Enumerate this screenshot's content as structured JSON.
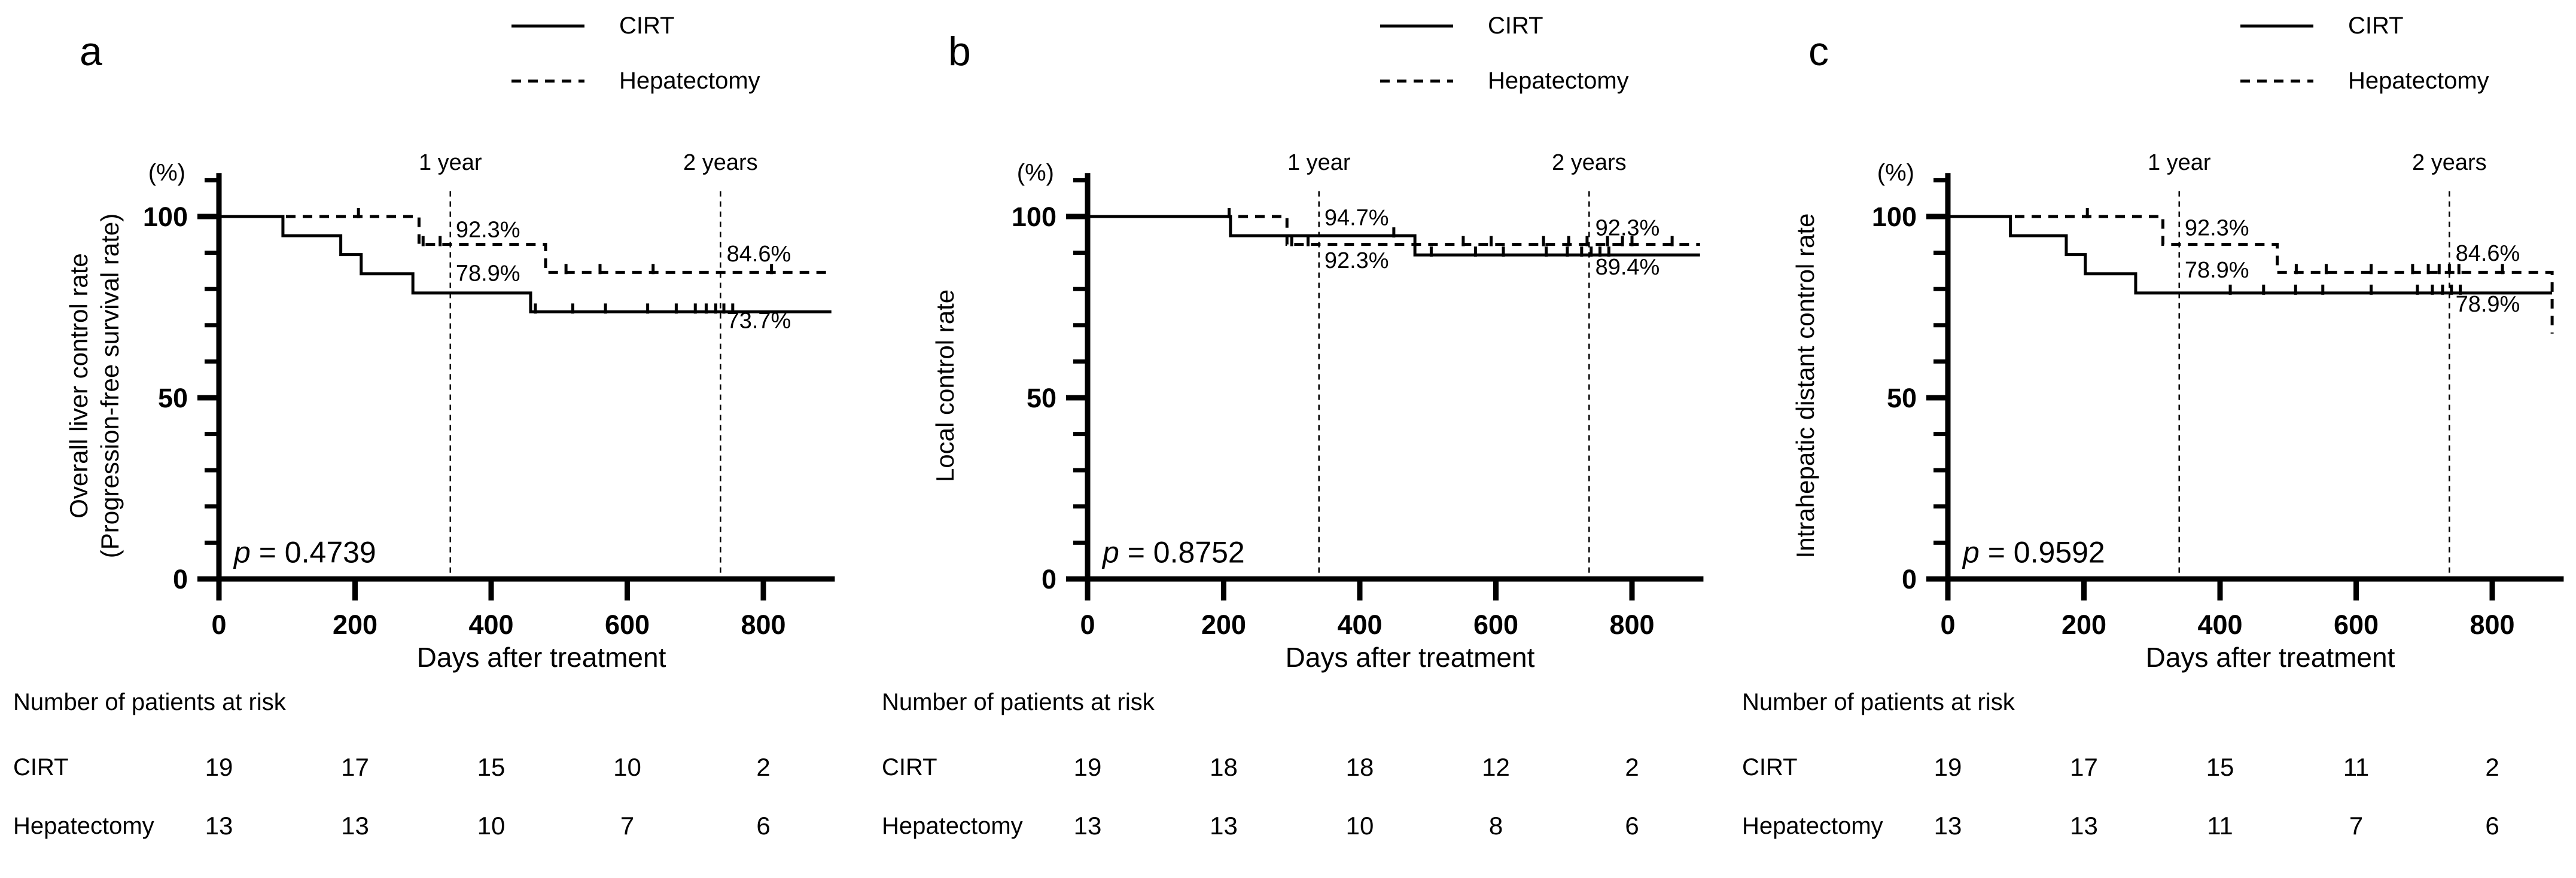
{
  "figure": {
    "background": "#ffffff",
    "text_color": "#000000",
    "x_axis_label": "Days after treatment",
    "y_unit_label": "(%)",
    "risk_table_title": "Number of patients at risk",
    "legend": {
      "items": [
        {
          "label": "CIRT",
          "line_style": "solid"
        },
        {
          "label": "Hepatectomy",
          "line_style": "dashed"
        }
      ]
    }
  },
  "chart_data": [
    {
      "panel_label": "a",
      "type": "line",
      "subtype": "kaplan-meier-step",
      "ylabel_lines": [
        "Overall liver control rate",
        "(Progression-free survival rate)"
      ],
      "xlabel": "Days after treatment",
      "y_unit": "(%)",
      "xlim": [
        0,
        905
      ],
      "ylim": [
        0,
        112
      ],
      "x_ticks": [
        0,
        200,
        400,
        600,
        800
      ],
      "y_major_ticks": [
        0,
        50,
        100
      ],
      "y_minor_ticks": [
        10,
        20,
        30,
        40,
        60,
        70,
        80,
        90,
        110
      ],
      "grid": false,
      "legend_position": "top-right",
      "time_markers": [
        {
          "label": "1 year",
          "x_days": 340
        },
        {
          "label": "2 years",
          "x_days": 737
        }
      ],
      "p_text": {
        "symbol": "p",
        "rest": " = 0.4739"
      },
      "series": [
        {
          "name": "CIRT",
          "style": "solid",
          "steps": [
            [
              0,
              100
            ],
            [
              94,
              94.7
            ],
            [
              179,
              89.5
            ],
            [
              209,
              84.2
            ],
            [
              285,
              78.9
            ],
            [
              458,
              73.7
            ]
          ],
          "end_x": 900,
          "censors": [
            [
              465,
              73.7
            ],
            [
              520,
              73.7
            ],
            [
              568,
              73.7
            ],
            [
              630,
              73.7
            ],
            [
              672,
              73.7
            ],
            [
              700,
              73.7
            ],
            [
              716,
              73.7
            ],
            [
              730,
              73.7
            ],
            [
              742,
              73.7
            ],
            [
              755,
              73.7
            ]
          ]
        },
        {
          "name": "Hepatectomy",
          "style": "dashed",
          "steps": [
            [
              0,
              100
            ],
            [
              294,
              92.3
            ],
            [
              480,
              84.6
            ]
          ],
          "end_x": 900,
          "censors": [
            [
              205,
              100
            ],
            [
              300,
              92.3
            ],
            [
              325,
              92.3
            ],
            [
              510,
              84.6
            ],
            [
              560,
              84.6
            ],
            [
              638,
              84.6
            ],
            [
              812,
              84.6
            ]
          ]
        }
      ],
      "annotations": [
        {
          "text": "92.3%",
          "x_days": 348,
          "y_pct": 94.3
        },
        {
          "text": "78.9%",
          "x_days": 348,
          "y_pct": 82.3
        },
        {
          "text": "84.6%",
          "x_days": 746,
          "y_pct": 87.6
        },
        {
          "text": "73.7%",
          "x_days": 746,
          "y_pct": 69.2
        }
      ],
      "risk_table": {
        "rows": [
          {
            "label": "CIRT",
            "values": [
              "19",
              "17",
              "15",
              "10",
              "2"
            ]
          },
          {
            "label": "Hepatectomy",
            "values": [
              "13",
              "13",
              "10",
              "7",
              "6"
            ]
          }
        ]
      }
    },
    {
      "panel_label": "b",
      "type": "line",
      "subtype": "kaplan-meier-step",
      "ylabel_lines": [
        "Local control rate"
      ],
      "xlabel": "Days after treatment",
      "y_unit": "(%)",
      "xlim": [
        0,
        905
      ],
      "ylim": [
        0,
        112
      ],
      "x_ticks": [
        0,
        200,
        400,
        600,
        800
      ],
      "y_major_ticks": [
        0,
        50,
        100
      ],
      "y_minor_ticks": [
        10,
        20,
        30,
        40,
        60,
        70,
        80,
        90,
        110
      ],
      "grid": false,
      "legend_position": "top-right",
      "time_markers": [
        {
          "label": "1 year",
          "x_days": 340
        },
        {
          "label": "2 years",
          "x_days": 737
        }
      ],
      "p_text": {
        "symbol": "p",
        "rest": " = 0.8752"
      },
      "series": [
        {
          "name": "CIRT",
          "style": "solid",
          "steps": [
            [
              0,
              100
            ],
            [
              210,
              94.7
            ],
            [
              481,
              89.4
            ]
          ],
          "end_x": 900,
          "censors": [
            [
              208,
              100
            ],
            [
              450,
              94.7
            ],
            [
              505,
              89.4
            ],
            [
              570,
              89.4
            ],
            [
              611,
              89.4
            ],
            [
              674,
              89.4
            ],
            [
              705,
              89.4
            ],
            [
              726,
              89.4
            ],
            [
              740,
              89.4
            ],
            [
              753,
              89.4
            ],
            [
              766,
              89.4
            ]
          ]
        },
        {
          "name": "Hepatectomy",
          "style": "dashed",
          "steps": [
            [
              0,
              100
            ],
            [
              293,
              92.3
            ]
          ],
          "end_x": 900,
          "censors": [
            [
              300,
              92.3
            ],
            [
              324,
              92.3
            ],
            [
              552,
              92.3
            ],
            [
              593,
              92.3
            ],
            [
              670,
              92.3
            ],
            [
              707,
              92.3
            ],
            [
              734,
              92.3
            ],
            [
              764,
              92.3
            ],
            [
              786,
              92.3
            ],
            [
              800,
              92.3
            ],
            [
              859,
              92.3
            ]
          ]
        }
      ],
      "annotations": [
        {
          "text": "94.7%",
          "x_days": 348,
          "y_pct": 97.6
        },
        {
          "text": "92.3%",
          "x_days": 348,
          "y_pct": 85.8
        },
        {
          "text": "92.3%",
          "x_days": 746,
          "y_pct": 94.8
        },
        {
          "text": "89.4%",
          "x_days": 746,
          "y_pct": 84.0
        }
      ],
      "risk_table": {
        "rows": [
          {
            "label": "CIRT",
            "values": [
              "19",
              "18",
              "18",
              "12",
              "2"
            ]
          },
          {
            "label": "Hepatectomy",
            "values": [
              "13",
              "13",
              "10",
              "8",
              "6"
            ]
          }
        ]
      }
    },
    {
      "panel_label": "c",
      "type": "line",
      "subtype": "kaplan-meier-step",
      "ylabel_lines": [
        "Intrahepatic distant control rate"
      ],
      "xlabel": "Days after treatment",
      "y_unit": "(%)",
      "xlim": [
        0,
        905
      ],
      "ylim": [
        0,
        112
      ],
      "x_ticks": [
        0,
        200,
        400,
        600,
        800
      ],
      "y_major_ticks": [
        0,
        50,
        100
      ],
      "y_minor_ticks": [
        10,
        20,
        30,
        40,
        60,
        70,
        80,
        90,
        110
      ],
      "grid": false,
      "legend_position": "top-right",
      "time_markers": [
        {
          "label": "1 year",
          "x_days": 340
        },
        {
          "label": "2 years",
          "x_days": 737
        }
      ],
      "p_text": {
        "symbol": "p",
        "rest": " = 0.9592"
      },
      "series": [
        {
          "name": "CIRT",
          "style": "solid",
          "steps": [
            [
              0,
              100
            ],
            [
              92,
              94.7
            ],
            [
              174,
              89.5
            ],
            [
              202,
              84.2
            ],
            [
              276,
              78.9
            ]
          ],
          "end_x": 888,
          "censors": [
            [
              415,
              78.9
            ],
            [
              464,
              78.9
            ],
            [
              511,
              78.9
            ],
            [
              551,
              78.9
            ],
            [
              622,
              78.9
            ],
            [
              690,
              78.9
            ],
            [
              712,
              78.9
            ],
            [
              727,
              78.9
            ],
            [
              740,
              78.9
            ],
            [
              753,
              78.9
            ]
          ]
        },
        {
          "name": "Hepatectomy",
          "style": "dashed",
          "steps": [
            [
              0,
              100
            ],
            [
              316,
              92.3
            ],
            [
              484,
              84.6
            ],
            [
              888,
              67.7
            ]
          ],
          "end_x": 888,
          "censors": [
            [
              205,
              100
            ],
            [
              512,
              84.6
            ],
            [
              556,
              84.6
            ],
            [
              622,
              84.6
            ],
            [
              683,
              84.6
            ],
            [
              706,
              84.6
            ],
            [
              722,
              84.6
            ],
            [
              737,
              84.6
            ],
            [
              751,
              84.6
            ],
            [
              815,
              84.6
            ]
          ]
        }
      ],
      "annotations": [
        {
          "text": "92.3%",
          "x_days": 348,
          "y_pct": 94.8
        },
        {
          "text": "78.9%",
          "x_days": 348,
          "y_pct": 83.2
        },
        {
          "text": "84.6%",
          "x_days": 746,
          "y_pct": 87.8
        },
        {
          "text": "78.9%",
          "x_days": 746,
          "y_pct": 73.8
        }
      ],
      "risk_table": {
        "rows": [
          {
            "label": "CIRT",
            "values": [
              "19",
              "17",
              "15",
              "11",
              "2"
            ]
          },
          {
            "label": "Hepatectomy",
            "values": [
              "13",
              "13",
              "11",
              "7",
              "6"
            ]
          }
        ]
      }
    }
  ]
}
